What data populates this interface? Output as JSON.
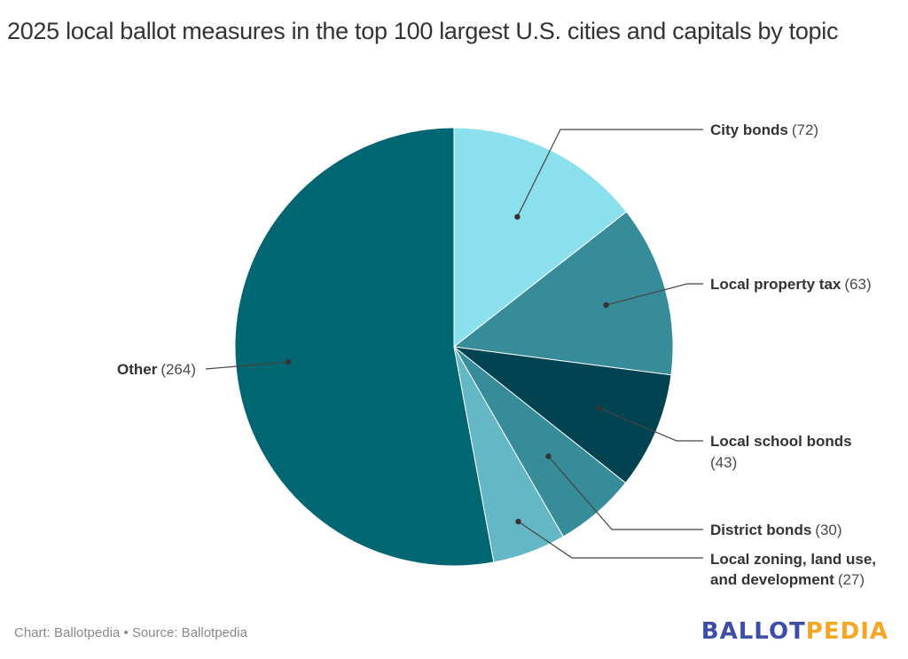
{
  "chart_data": {
    "type": "pie",
    "title": "2025 local ballot measures in the top 100 largest U.S. cities and capitals by topic",
    "slices": [
      {
        "label": "City bonds",
        "value": 72,
        "color": "#8be0ee"
      },
      {
        "label": "Local property tax",
        "value": 63,
        "color": "#378c99"
      },
      {
        "label": "Local school bonds",
        "value": 43,
        "color": "#024352"
      },
      {
        "label": "District bonds",
        "value": 30,
        "color": "#378c99"
      },
      {
        "label": "Local zoning, land use, and development",
        "value": 27,
        "color": "#64b8c6"
      },
      {
        "label": "Other",
        "value": 264,
        "color": "#006672"
      }
    ],
    "start_angle": "12 o'clock",
    "direction": "clockwise",
    "legend": "none (direct labels)"
  },
  "labels": [
    {
      "name": "City bonds",
      "value": "(72)"
    },
    {
      "name": "Local property tax",
      "value": "(63)"
    },
    {
      "name": "Local school bonds",
      "value": "(43)"
    },
    {
      "name": "District bonds",
      "value": "(30)"
    },
    {
      "name_line1": "Local zoning, land use,",
      "name_line2": "and development",
      "value": "(27)"
    },
    {
      "name": "Other",
      "value": "(264)"
    }
  ],
  "footer": {
    "credit": "Chart: Ballotpedia • Source: Ballotpedia"
  },
  "logo": {
    "part1": "BALLOT",
    "part2": "PEDIA"
  }
}
